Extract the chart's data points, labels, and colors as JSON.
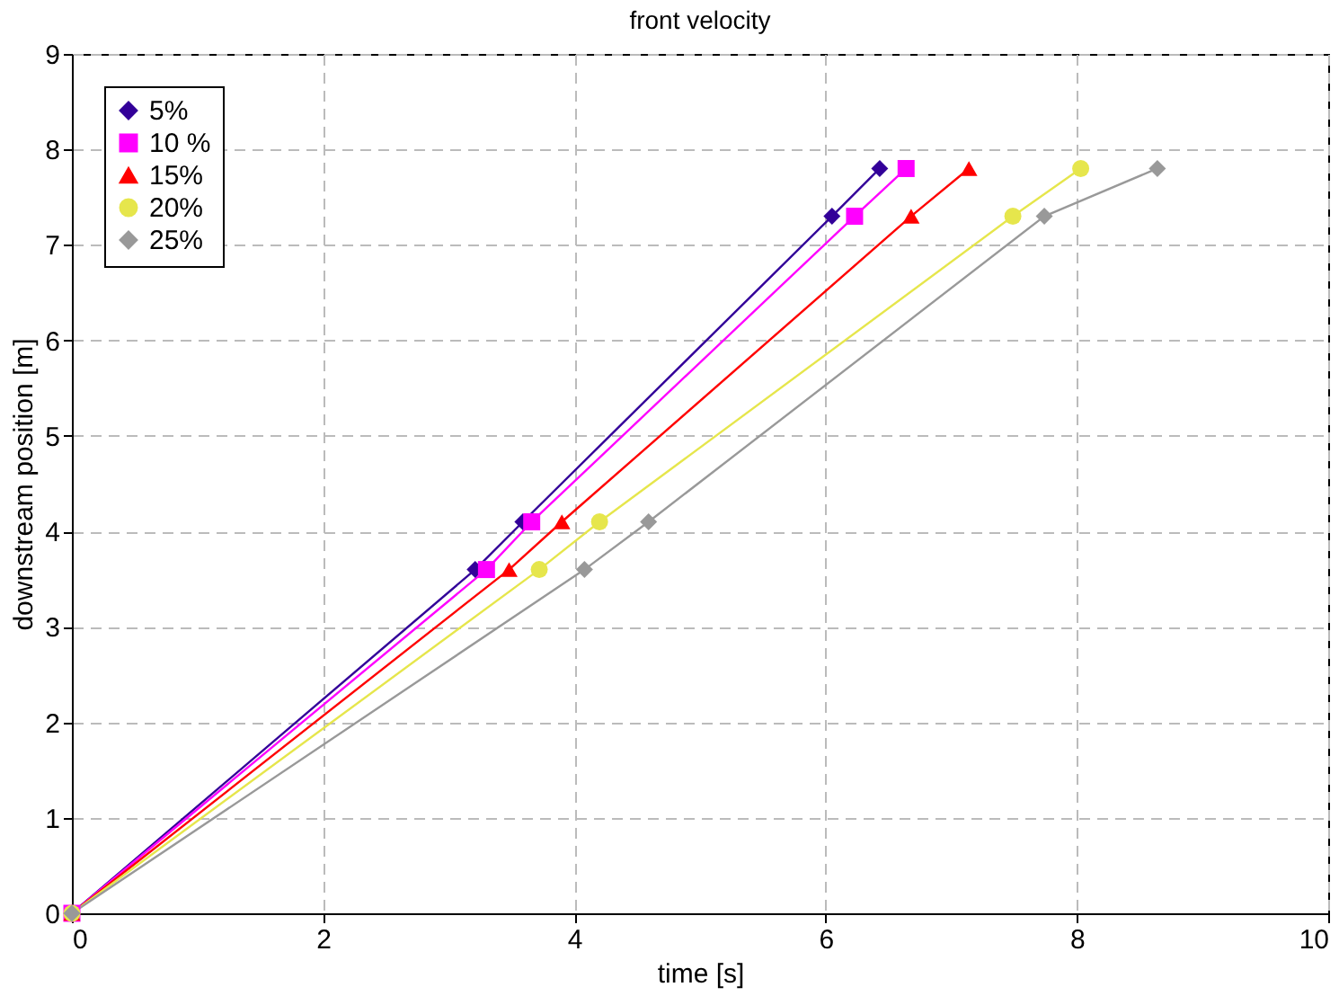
{
  "chart_data": {
    "type": "line",
    "title": "front velocity",
    "xlabel": "time [s]",
    "ylabel": "downstream position [m]",
    "xlim": [
      0,
      10
    ],
    "xticks": [
      0,
      2,
      4,
      6,
      8,
      10
    ],
    "ylim": [
      0,
      9
    ],
    "yticks": [
      0,
      1,
      2,
      3,
      4,
      5,
      6,
      7,
      8,
      9
    ],
    "grid": true,
    "legend": "top left",
    "line_style": "solid",
    "series": [
      {
        "name": "5%",
        "color": "#330099",
        "marker": "diamond",
        "x": [
          0,
          3.21,
          3.59,
          6.05,
          6.43
        ],
        "values": [
          0,
          3.6,
          4.1,
          7.3,
          7.8
        ]
      },
      {
        "name": "10 %",
        "color": "#ff00ff",
        "marker": "square",
        "x": [
          0,
          3.3,
          3.66,
          6.23,
          6.64
        ],
        "values": [
          0,
          3.6,
          4.1,
          7.3,
          7.8
        ]
      },
      {
        "name": "15%",
        "color": "#ff0000",
        "marker": "triangle",
        "x": [
          0,
          3.48,
          3.9,
          6.68,
          7.14
        ],
        "values": [
          0,
          3.6,
          4.1,
          7.3,
          7.8
        ]
      },
      {
        "name": "20%",
        "color": "#e6e64c",
        "marker": "circle",
        "x": [
          0,
          3.72,
          4.2,
          7.49,
          8.03
        ],
        "values": [
          0,
          3.6,
          4.1,
          7.3,
          7.8
        ]
      },
      {
        "name": "25%",
        "color": "#999999",
        "marker": "diamond",
        "x": [
          0,
          4.08,
          4.59,
          7.74,
          8.64
        ],
        "values": [
          0,
          3.6,
          4.1,
          7.3,
          7.8
        ]
      }
    ]
  }
}
